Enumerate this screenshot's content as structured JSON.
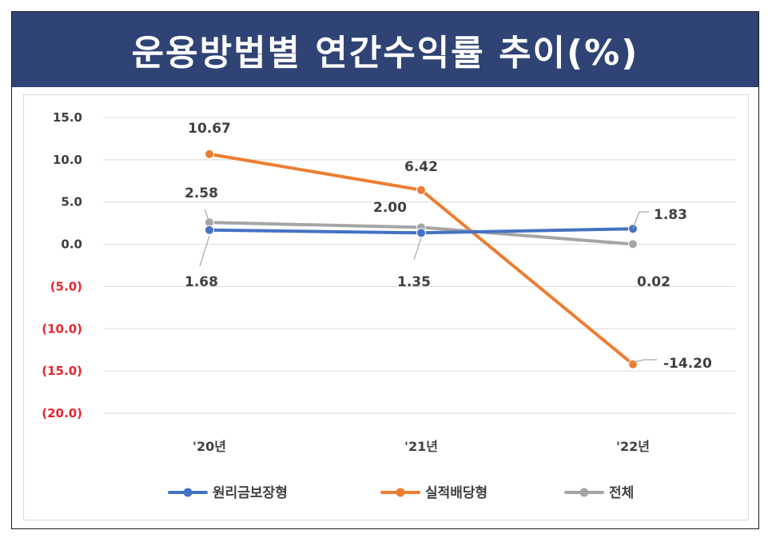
{
  "title": "운용방법별 연간수익률 추이(%)",
  "chart_data": {
    "type": "line",
    "categories": [
      "'20년",
      "'21년",
      "'22년"
    ],
    "ylim": [
      -20,
      15
    ],
    "yticks": [
      15,
      10,
      5,
      0,
      -5,
      -10,
      -15,
      -20
    ],
    "ytick_labels": [
      "15.0",
      "10.0",
      "5.0",
      "0.0",
      "(5.0)",
      "(10.0)",
      "(15.0)",
      "(20.0)"
    ],
    "grid": true,
    "legend_position": "bottom",
    "series": [
      {
        "name": "원리금보장형",
        "color": "#4472c4",
        "values": [
          1.68,
          1.35,
          1.83
        ],
        "labels": [
          "1.68",
          "1.35",
          "1.83"
        ]
      },
      {
        "name": "실적배당형",
        "color": "#ed7d31",
        "values": [
          10.67,
          6.42,
          -14.2
        ],
        "labels": [
          "10.67",
          "6.42",
          "-14.20"
        ]
      },
      {
        "name": "전체",
        "color": "#a5a5a5",
        "values": [
          2.58,
          2.0,
          0.02
        ],
        "labels": [
          "2.58",
          "2.00",
          "0.02"
        ]
      }
    ]
  }
}
